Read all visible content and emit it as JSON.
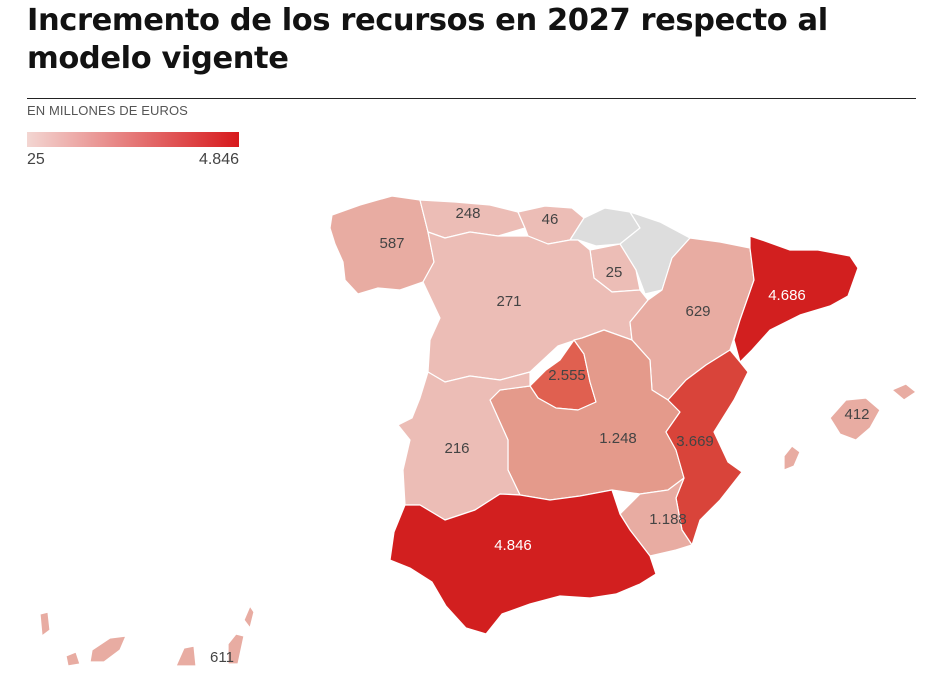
{
  "title": "Incremento de los recursos en 2027 respecto al modelo vigente",
  "subtitle": "EN MILLONES DE EUROS",
  "legend": {
    "min": "25",
    "max": "4.846",
    "color_low": "#f3d6d2",
    "color_high": "#d7191c"
  },
  "colors": {
    "lightest": "#ecbdb6",
    "light": "#e8aca2",
    "medium": "#e49a8b",
    "strong": "#e06050",
    "deep": "#d9443a",
    "darkest": "#d21f1f",
    "no_data": "#dddddd"
  },
  "regions": {
    "galicia": "587",
    "asturias": "248",
    "cantabria": "46",
    "navarra": "25",
    "castilla_leon": "271",
    "aragon": "629",
    "cataluna": "4.686",
    "madrid": "2.555",
    "extremadura": "216",
    "castilla_la_mancha": "1.248",
    "valencia": "3.669",
    "murcia": "1.188",
    "andalucia": "4.846",
    "baleares": "412",
    "canarias": "611"
  }
}
